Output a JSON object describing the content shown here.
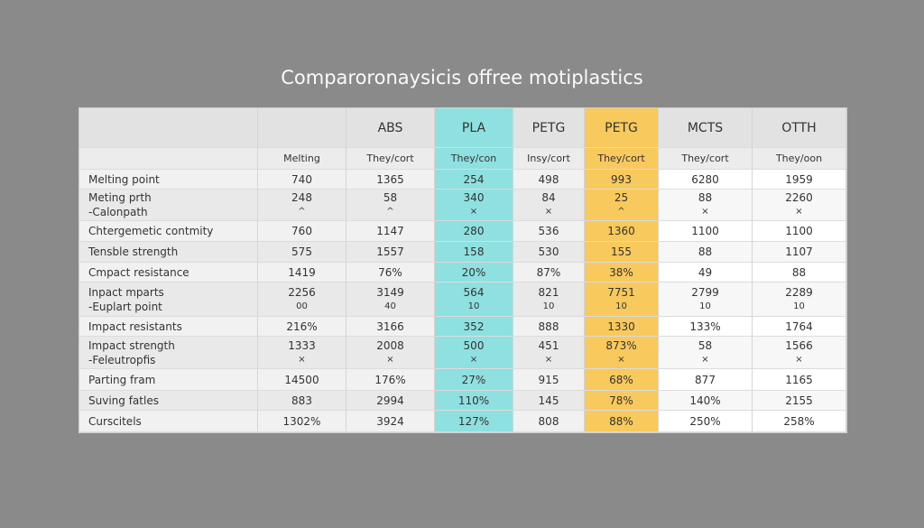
{
  "title": "Comparoronaysicis offree motiplastics",
  "table": {
    "header": [
      "",
      "",
      "ABS",
      "PLA",
      "PETG",
      "PETG",
      "MCTS",
      "OTTH"
    ],
    "subheader": [
      "",
      "Melting",
      "They/cort",
      "They/con",
      "Insy/cort",
      "They/cort",
      "They/cort",
      "They/oon"
    ],
    "rows": [
      [
        "Melting point",
        "740",
        "1365",
        "254",
        "498",
        "993",
        "6280",
        "1959"
      ],
      [
        [
          "Meting prth",
          "-Calonpath"
        ],
        [
          "248",
          "^"
        ],
        [
          "58",
          "^"
        ],
        [
          "340",
          "×"
        ],
        [
          "84",
          "×"
        ],
        [
          "25",
          "^"
        ],
        [
          "88",
          "×"
        ],
        [
          "2260",
          "×"
        ]
      ],
      [
        "Chtergemetic contmity",
        "760",
        "1147",
        "280",
        "536",
        "1360",
        "1100",
        "1100"
      ],
      [
        "Tensble strength",
        "575",
        "1557",
        "158",
        "530",
        "155",
        "88",
        "1107"
      ],
      [
        "Cmpact resistance",
        "1419",
        "76%",
        "20%",
        "87%",
        "38%",
        "49",
        "88"
      ],
      [
        [
          "Inpact mparts",
          "-Euplart point"
        ],
        [
          "2256",
          "00"
        ],
        [
          "3149",
          "40"
        ],
        [
          "564",
          "10"
        ],
        [
          "821",
          "10"
        ],
        [
          "7751",
          "10"
        ],
        [
          "2799",
          "10"
        ],
        [
          "2289",
          "10"
        ]
      ],
      [
        "Impact resistants",
        "216%",
        "3166",
        "352",
        "888",
        "1330",
        "133%",
        "1764"
      ],
      [
        [
          "Impact strength",
          "-Feleutropfis"
        ],
        [
          "1333",
          "×"
        ],
        [
          "2008",
          "×"
        ],
        [
          "500",
          "×"
        ],
        [
          "451",
          "×"
        ],
        [
          "873%",
          "×"
        ],
        [
          "58",
          "×"
        ],
        [
          "1566",
          "×"
        ]
      ],
      [
        "Parting fram",
        "14500",
        "176%",
        "27%",
        "915",
        "68%",
        "877",
        "1165"
      ],
      [
        "Suving fatles",
        "883",
        "2994",
        "110%",
        "145",
        "78%",
        "140%",
        "2155"
      ],
      [
        "Curscitels",
        "1302%",
        "3924",
        "127%",
        "808",
        "88%",
        "250%",
        "258%"
      ]
    ]
  }
}
